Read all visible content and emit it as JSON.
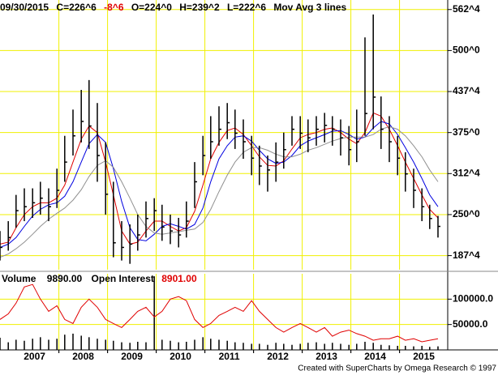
{
  "header": {
    "date": "09/30/2015",
    "close": "C=226^6",
    "change": "-8^6",
    "open": "O=224^0",
    "high": "H=239^2",
    "low": "L=222^6",
    "study": "Mov Avg 3 lines"
  },
  "volume_header": {
    "volume_label": "Volume",
    "volume": "9890.00",
    "oi_label": "Open Interest",
    "oi": "8901.00"
  },
  "footer": "Created with SuperCharts by Omega Research © 1997",
  "chart_data": [
    {
      "type": "ohlc",
      "x": [
        2006.79,
        2006.96,
        2007.12,
        2007.29,
        2007.46,
        2007.62,
        2007.79,
        2007.96,
        2008.12,
        2008.29,
        2008.46,
        2008.62,
        2008.79,
        2008.96,
        2009.12,
        2009.29,
        2009.46,
        2009.62,
        2009.79,
        2009.96,
        2010.12,
        2010.29,
        2010.46,
        2010.62,
        2010.79,
        2010.96,
        2011.12,
        2011.29,
        2011.46,
        2011.62,
        2011.79,
        2011.96,
        2012.12,
        2012.29,
        2012.46,
        2012.62,
        2012.79,
        2012.96,
        2013.12,
        2013.29,
        2013.46,
        2013.62,
        2013.79,
        2013.96,
        2014.12,
        2014.29,
        2014.46,
        2014.62,
        2014.79,
        2014.96,
        2015.12,
        2015.29,
        2015.46,
        2015.62,
        2015.79
      ],
      "high": [
        225,
        240,
        280,
        290,
        290,
        300,
        290,
        320,
        370,
        410,
        440,
        455,
        420,
        360,
        300,
        240,
        235,
        250,
        270,
        275,
        265,
        250,
        245,
        270,
        330,
        370,
        400,
        415,
        420,
        410,
        395,
        370,
        355,
        340,
        360,
        375,
        400,
        400,
        395,
        400,
        405,
        400,
        395,
        385,
        410,
        520,
        555,
        430,
        400,
        370,
        345,
        320,
        290,
        265,
        248
      ],
      "low": [
        180,
        195,
        230,
        240,
        245,
        250,
        240,
        260,
        300,
        340,
        360,
        350,
        300,
        250,
        185,
        180,
        175,
        195,
        215,
        225,
        210,
        205,
        200,
        215,
        260,
        310,
        335,
        355,
        365,
        350,
        335,
        310,
        295,
        285,
        300,
        320,
        355,
        350,
        345,
        355,
        360,
        355,
        340,
        325,
        330,
        370,
        380,
        350,
        330,
        310,
        285,
        260,
        240,
        228,
        215
      ],
      "close": [
        200,
        215,
        256,
        262,
        268,
        275,
        262,
        287,
        330,
        370,
        392,
        385,
        340,
        281,
        207,
        200,
        205,
        219,
        244,
        256,
        231,
        225,
        219,
        240,
        300,
        340,
        361,
        380,
        390,
        374,
        361,
        336,
        324,
        318,
        330,
        349,
        380,
        374,
        367,
        380,
        386,
        380,
        367,
        349,
        361,
        404,
        429,
        380,
        361,
        336,
        312,
        287,
        262,
        244,
        232
      ],
      "color": "#000000",
      "lines": [
        {
          "color": "#e00000",
          "values": [
            205,
            208,
            230,
            250,
            262,
            268,
            268,
            275,
            295,
            330,
            365,
            385,
            375,
            330,
            280,
            225,
            205,
            208,
            225,
            240,
            240,
            232,
            225,
            230,
            255,
            295,
            335,
            360,
            378,
            382,
            372,
            355,
            338,
            325,
            324,
            332,
            350,
            367,
            372,
            375,
            380,
            382,
            375,
            365,
            358,
            375,
            405,
            400,
            380,
            355,
            330,
            305,
            280,
            258,
            245
          ]
        },
        {
          "color": "#0000e0",
          "values": [
            200,
            205,
            215,
            232,
            248,
            258,
            265,
            268,
            278,
            300,
            330,
            358,
            372,
            360,
            320,
            270,
            230,
            212,
            210,
            220,
            232,
            236,
            232,
            228,
            235,
            260,
            300,
            335,
            355,
            368,
            370,
            362,
            348,
            335,
            328,
            330,
            340,
            355,
            362,
            367,
            372,
            377,
            378,
            372,
            365,
            368,
            382,
            392,
            388,
            372,
            352,
            330,
            305,
            280,
            262
          ]
        },
        {
          "color": "#909090",
          "values": [
            185,
            190,
            198,
            208,
            220,
            232,
            243,
            252,
            260,
            272,
            288,
            308,
            325,
            332,
            322,
            300,
            275,
            250,
            232,
            222,
            220,
            222,
            224,
            226,
            228,
            238,
            258,
            285,
            310,
            330,
            345,
            352,
            352,
            348,
            342,
            338,
            338,
            342,
            348,
            352,
            357,
            362,
            366,
            368,
            368,
            368,
            372,
            380,
            384,
            380,
            370,
            355,
            338,
            318,
            300
          ]
        }
      ],
      "xlim": [
        2006.79,
        2015.99
      ],
      "xgrid": [
        2008,
        2009,
        2010,
        2011,
        2012,
        2013,
        2014,
        2015
      ],
      "ylim": [
        166,
        577
      ],
      "yticks": [
        {
          "value": 562.5,
          "label": "562^4"
        },
        {
          "value": 500,
          "label": "500^0"
        },
        {
          "value": 437.5,
          "label": "437^4"
        },
        {
          "value": 375,
          "label": "375^0"
        },
        {
          "value": 312.5,
          "label": "312^4"
        },
        {
          "value": 250,
          "label": "250^0"
        },
        {
          "value": 187.5,
          "label": "187^4"
        }
      ],
      "grid": true,
      "grid_color": "#f0f000"
    },
    {
      "type": "volume",
      "volume": [
        24000,
        15000,
        20000,
        18000,
        22000,
        25000,
        20000,
        22000,
        30000,
        32000,
        28000,
        25000,
        22000,
        20000,
        18000,
        15000,
        14000,
        16000,
        15000,
        145000,
        20000,
        18000,
        15000,
        16000,
        20000,
        25000,
        22000,
        20000,
        18000,
        15000,
        14000,
        12000,
        12000,
        10000,
        14000,
        12000,
        10000,
        12000,
        14000,
        15000,
        12000,
        14000,
        12000,
        10000,
        12000,
        16000,
        14000,
        10000,
        9000,
        8000,
        8000,
        7000,
        8000,
        6000,
        7000
      ],
      "open_interest": [
        60000,
        71000,
        92000,
        124000,
        129000,
        100000,
        76000,
        87000,
        60000,
        52000,
        84000,
        100000,
        84000,
        60000,
        52000,
        44000,
        60000,
        76000,
        84000,
        65000,
        76000,
        100000,
        105000,
        97000,
        60000,
        44000,
        52000,
        68000,
        76000,
        84000,
        76000,
        97000,
        76000,
        60000,
        44000,
        35000,
        44000,
        52000,
        44000,
        35000,
        44000,
        27000,
        35000,
        39000,
        32000,
        27000,
        19000,
        22000,
        22000,
        27000,
        19000,
        22000,
        16000,
        19000,
        22000
      ],
      "volume_color": "#000000",
      "oi_color": "#e00000",
      "xlim": [
        2006.79,
        2015.99
      ],
      "xgrid": [
        2008,
        2009,
        2010,
        2011,
        2012,
        2013,
        2014,
        2015
      ],
      "xticks": [
        {
          "value": 2007.5,
          "label": "2007"
        },
        {
          "value": 2008.5,
          "label": "2008"
        },
        {
          "value": 2009.5,
          "label": "2009"
        },
        {
          "value": 2010.5,
          "label": "2010"
        },
        {
          "value": 2011.5,
          "label": "2011"
        },
        {
          "value": 2012.5,
          "label": "2012"
        },
        {
          "value": 2013.5,
          "label": "2013"
        },
        {
          "value": 2014.5,
          "label": "2014"
        },
        {
          "value": 2015.5,
          "label": "2015"
        }
      ],
      "ylim": [
        0,
        150000
      ],
      "yticks": [
        {
          "value": 100000,
          "label": "100000.0"
        },
        {
          "value": 50000,
          "label": "50000.0"
        }
      ],
      "grid": true,
      "grid_color": "#f0f000"
    }
  ]
}
